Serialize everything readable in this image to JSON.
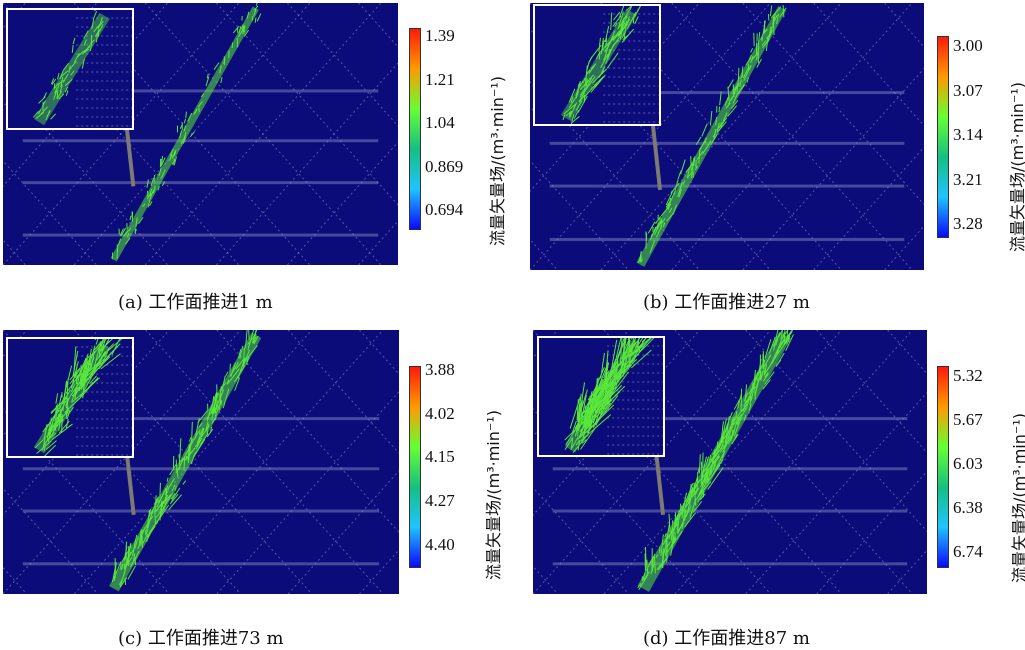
{
  "panels": [
    {
      "caption": "(a)  工作面推进1 m",
      "colorbar": {
        "ticks": [
          "1.39",
          "1.21",
          "1.04",
          "0.869",
          "0.694"
        ],
        "title": "流量矢量场/(m³·min⁻¹)"
      }
    },
    {
      "caption": "(b)  工作面推进27 m",
      "colorbar": {
        "ticks": [
          "3.00",
          "3.07",
          "3.14",
          "3.21",
          "3.28"
        ],
        "title": "流量矢量场/(m³·min⁻¹)"
      }
    },
    {
      "caption": "(c)  工作面推进73 m",
      "colorbar": {
        "ticks": [
          "3.88",
          "4.02",
          "4.15",
          "4.27",
          "4.40"
        ],
        "title": "流量矢量场/(m³·min⁻¹)"
      }
    },
    {
      "caption": "(d)  工作面推进87 m",
      "colorbar": {
        "ticks": [
          "5.32",
          "5.67",
          "6.03",
          "6.38",
          "6.74"
        ],
        "title": "流量矢量场/(m³·min⁻¹)"
      }
    }
  ],
  "colors": {
    "background": "#0b0b7a",
    "vectors": "#59e83a",
    "grid": "#8f93c9",
    "inset_border": "#ffffff",
    "arrow": "#7d7a74"
  }
}
